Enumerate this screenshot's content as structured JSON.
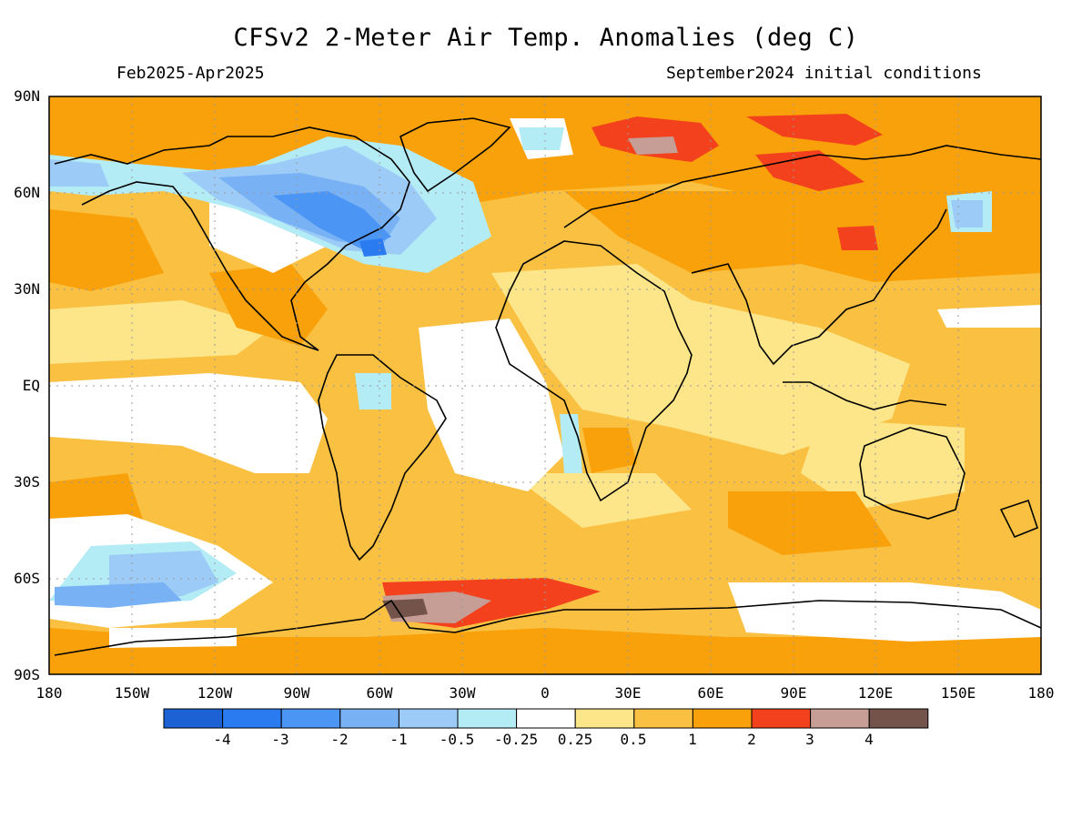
{
  "title": "CFSv2 2-Meter Air Temp. Anomalies (deg C)",
  "subtitle_left": "Feb2025-Apr2025",
  "subtitle_right": "September2024 initial conditions",
  "lat_labels": [
    "90N",
    "60N",
    "30N",
    "EQ",
    "30S",
    "60S",
    "90S"
  ],
  "lon_labels": [
    "180",
    "150W",
    "120W",
    "90W",
    "60W",
    "30W",
    "0",
    "30E",
    "60E",
    "90E",
    "120E",
    "150E",
    "180"
  ],
  "colorbar": {
    "labels": [
      "-4",
      "-3",
      "-2",
      "-1",
      "-0.5",
      "-0.25",
      "0.25",
      "0.5",
      "1",
      "2",
      "3",
      "4"
    ],
    "colors": [
      "#1c62d4",
      "#2a7af0",
      "#4b95f5",
      "#78b2f5",
      "#9ccbf7",
      "#b4ecf6",
      "#ffffff",
      "#fde68a",
      "#f9c042",
      "#f9a10a",
      "#f2411c",
      "#c69e95",
      "#74534a"
    ]
  }
}
